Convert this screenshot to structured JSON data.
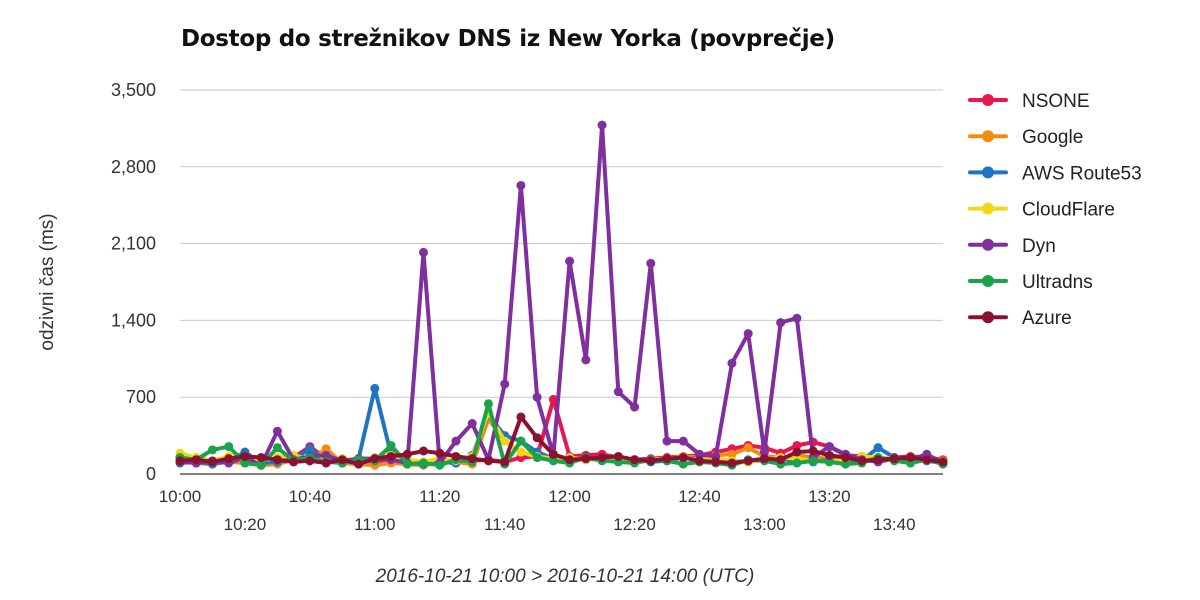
{
  "chart_data": {
    "type": "line",
    "title": "Dostop do strežnikov DNS iz New Yorka (povprečje)",
    "ylabel": "odzivni čas (ms)",
    "xlabel": "2016-10-21 10:00 > 2016-10-21 14:00 (UTC)",
    "ylim": [
      0,
      3500
    ],
    "yticks": [
      0,
      700,
      1400,
      2100,
      2800,
      3500
    ],
    "ytick_labels": [
      "0",
      "700",
      "1,400",
      "2,100",
      "2,800",
      "3,500"
    ],
    "xlim": [
      "10:00",
      "13:55"
    ],
    "xtick_labels_upper": [
      "10:00",
      "10:40",
      "11:20",
      "12:00",
      "12:40",
      "13:20"
    ],
    "xtick_labels_lower": [
      "10:20",
      "11:00",
      "11:40",
      "12:20",
      "13:00",
      "13:40"
    ],
    "grid": true,
    "legend": "right",
    "x": [
      "10:00",
      "10:05",
      "10:10",
      "10:15",
      "10:20",
      "10:25",
      "10:30",
      "10:35",
      "10:40",
      "10:45",
      "10:50",
      "10:55",
      "11:00",
      "11:05",
      "11:10",
      "11:15",
      "11:20",
      "11:25",
      "11:30",
      "11:35",
      "11:40",
      "11:45",
      "11:50",
      "11:55",
      "12:00",
      "12:05",
      "12:10",
      "12:15",
      "12:20",
      "12:25",
      "12:30",
      "12:35",
      "12:40",
      "12:45",
      "12:50",
      "12:55",
      "13:00",
      "13:05",
      "13:10",
      "13:15",
      "13:20",
      "13:25",
      "13:30",
      "13:35",
      "13:40",
      "13:45",
      "13:50",
      "13:55"
    ],
    "series": [
      {
        "name": "NSONE",
        "color": "#e8174e",
        "values": [
          150,
          120,
          100,
          140,
          130,
          90,
          110,
          150,
          250,
          140,
          110,
          130,
          100,
          120,
          90,
          100,
          110,
          100,
          120,
          130,
          110,
          150,
          160,
          680,
          160,
          170,
          180,
          150,
          130,
          140,
          150,
          160,
          170,
          200,
          230,
          260,
          240,
          190,
          260,
          290,
          250,
          170,
          160,
          140,
          150,
          160,
          150,
          130
        ]
      },
      {
        "name": "Google",
        "color": "#f28c0f",
        "values": [
          120,
          100,
          90,
          110,
          100,
          80,
          90,
          130,
          120,
          230,
          100,
          90,
          80,
          100,
          90,
          80,
          100,
          110,
          90,
          500,
          300,
          200,
          150,
          130,
          120,
          140,
          150,
          130,
          110,
          120,
          140,
          160,
          150,
          170,
          180,
          240,
          160,
          150,
          170,
          150,
          140,
          130,
          120,
          130,
          140,
          150,
          130,
          120
        ]
      },
      {
        "name": "AWS Route53",
        "color": "#1f74c4",
        "values": [
          100,
          110,
          90,
          120,
          200,
          100,
          110,
          130,
          230,
          120,
          100,
          140,
          780,
          180,
          100,
          90,
          110,
          100,
          170,
          540,
          350,
          300,
          200,
          140,
          150,
          130,
          140,
          120,
          130,
          110,
          120,
          150,
          140,
          130,
          120,
          110,
          130,
          140,
          120,
          110,
          130,
          100,
          120,
          240,
          150,
          130,
          120,
          100
        ]
      },
      {
        "name": "CloudFlare",
        "color": "#f2d716",
        "values": [
          190,
          150,
          120,
          160,
          140,
          120,
          150,
          170,
          130,
          160,
          140,
          120,
          150,
          170,
          130,
          110,
          140,
          120,
          160,
          560,
          300,
          200,
          160,
          140,
          150,
          130,
          140,
          120,
          110,
          130,
          140,
          150,
          130,
          140,
          120,
          110,
          130,
          150,
          140,
          120,
          110,
          130,
          160,
          150,
          140,
          120,
          130,
          110
        ]
      },
      {
        "name": "Dyn",
        "color": "#7f2f9e",
        "values": [
          110,
          100,
          120,
          100,
          150,
          80,
          390,
          130,
          160,
          170,
          120,
          140,
          140,
          130,
          100,
          2020,
          100,
          300,
          460,
          130,
          820,
          2630,
          700,
          170,
          1940,
          1040,
          3180,
          750,
          610,
          1920,
          300,
          300,
          180,
          160,
          1010,
          1280,
          200,
          1380,
          1420,
          150,
          250,
          180,
          130,
          110,
          140,
          130,
          180,
          100
        ]
      },
      {
        "name": "Ultradns",
        "color": "#1aa34a",
        "values": [
          150,
          130,
          220,
          250,
          100,
          80,
          240,
          120,
          150,
          110,
          100,
          130,
          120,
          260,
          90,
          100,
          80,
          130,
          110,
          640,
          90,
          300,
          150,
          120,
          100,
          150,
          120,
          110,
          100,
          130,
          120,
          90,
          110,
          100,
          80,
          130,
          120,
          90,
          100,
          120,
          110,
          90,
          100,
          150,
          120,
          100,
          130,
          90
        ]
      },
      {
        "name": "Azure",
        "color": "#8b1130",
        "values": [
          120,
          130,
          110,
          140,
          160,
          150,
          130,
          110,
          120,
          100,
          130,
          90,
          140,
          160,
          180,
          210,
          190,
          160,
          140,
          120,
          110,
          520,
          330,
          180,
          130,
          140,
          150,
          160,
          130,
          120,
          140,
          150,
          120,
          110,
          100,
          120,
          140,
          130,
          200,
          210,
          170,
          150,
          120,
          130,
          140,
          150,
          130,
          110
        ]
      }
    ]
  }
}
